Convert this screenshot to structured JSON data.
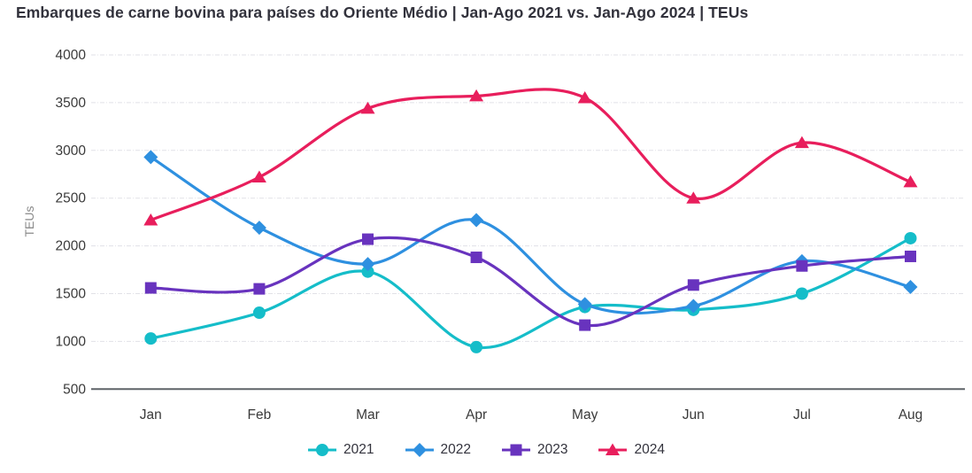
{
  "title": "Embarques de carne bovina para países do Oriente Médio | Jan-Ago 2021 vs. Jan-Ago 2024 | TEUs",
  "chart_data": {
    "type": "line",
    "title": "Embarques de carne bovina para países do Oriente Médio | Jan-Ago 2021 vs. Jan-Ago 2024 | TEUs",
    "categories": [
      "Jan",
      "Feb",
      "Mar",
      "Apr",
      "May",
      "Jun",
      "Jul",
      "Aug"
    ],
    "series": [
      {
        "name": "2021",
        "color": "#15bdc9",
        "marker": "circle",
        "values": [
          1030,
          1300,
          1730,
          940,
          1360,
          1330,
          1500,
          2080
        ]
      },
      {
        "name": "2022",
        "color": "#2e90e0",
        "marker": "diamond",
        "values": [
          2930,
          2190,
          1810,
          2270,
          1390,
          1370,
          1840,
          1570
        ]
      },
      {
        "name": "2023",
        "color": "#6833be",
        "marker": "square",
        "values": [
          1560,
          1550,
          2070,
          1880,
          1170,
          1590,
          1790,
          1890
        ]
      },
      {
        "name": "2024",
        "color": "#e81e5c",
        "marker": "triangle",
        "values": [
          2270,
          2720,
          3440,
          3570,
          3550,
          2500,
          3080,
          2670
        ]
      }
    ],
    "xlabel": "",
    "ylabel": "TEUs",
    "yticks": [
      500,
      1000,
      1500,
      2000,
      2500,
      3000,
      3500,
      4000
    ],
    "ylim": [
      500,
      4000
    ],
    "grid": "horizontal-dashed",
    "legend_position": "bottom",
    "line_style": "smooth"
  },
  "colors": {
    "title_text": "#32323c",
    "tick_text": "#3a3a3a",
    "axis_label_text": "#8a8a8a",
    "gridline": "#e1e1e7",
    "axis_line": "#5f6368",
    "background": "#ffffff"
  }
}
